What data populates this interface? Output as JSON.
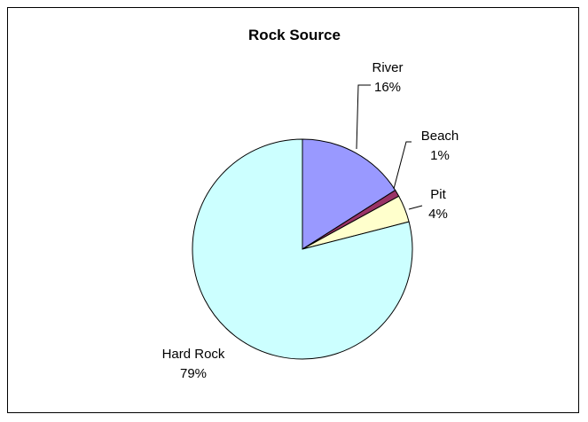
{
  "chart_data": {
    "type": "pie",
    "title": "Rock Source",
    "categories": [
      "River",
      "Beach",
      "Pit",
      "Hard Rock"
    ],
    "values": [
      16,
      1,
      4,
      79
    ],
    "labels": [
      "16%",
      "1%",
      "4%",
      "79%"
    ],
    "colors": [
      "#9999ff",
      "#993366",
      "#ffffcc",
      "#ccffff"
    ],
    "legend": "none"
  }
}
